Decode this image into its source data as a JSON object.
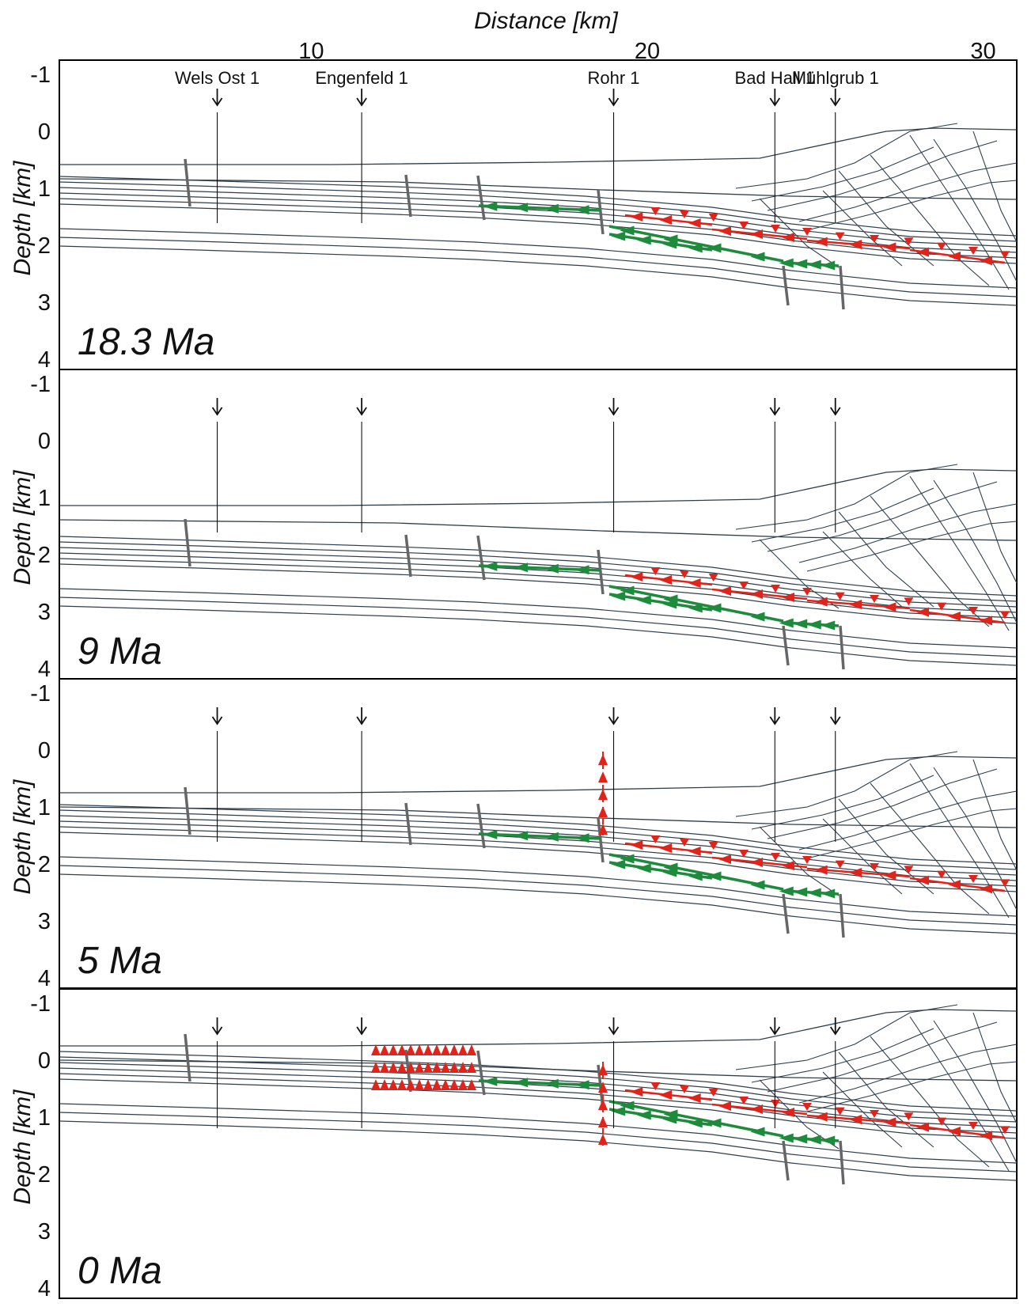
{
  "x_axis": {
    "title": "Distance [km]",
    "ticks": [
      {
        "value": 10,
        "label": "10"
      },
      {
        "value": 20,
        "label": "20"
      },
      {
        "value": 30,
        "label": "30"
      }
    ]
  },
  "y_axis": {
    "title": "Depth [km]",
    "ticks": [
      {
        "value": -1,
        "label": "-1"
      },
      {
        "value": 0,
        "label": "0"
      },
      {
        "value": 1,
        "label": "1"
      },
      {
        "value": 2,
        "label": "2"
      },
      {
        "value": 3,
        "label": "3"
      },
      {
        "value": 4,
        "label": "4"
      }
    ]
  },
  "wells": [
    {
      "name": "Wels Ost 1",
      "distance_km": 7.2
    },
    {
      "name": "Engenfeld 1",
      "distance_km": 11.5
    },
    {
      "name": "Rohr 1",
      "distance_km": 19.0
    },
    {
      "name": "Bad Hall 1",
      "distance_km": 23.8
    },
    {
      "name": "Mühlgrub 1",
      "distance_km": 25.6
    }
  ],
  "panels": [
    {
      "age": "18.3 Ma"
    },
    {
      "age": "9 Ma"
    },
    {
      "age": "5 Ma"
    },
    {
      "age": "0 Ma"
    }
  ],
  "colors": {
    "horizon": "#2f3e4a",
    "fault": "#666666",
    "flow_toward_foreland": "#1e8a3c",
    "flow_red": "#e0241c",
    "frame": "#000000"
  }
}
